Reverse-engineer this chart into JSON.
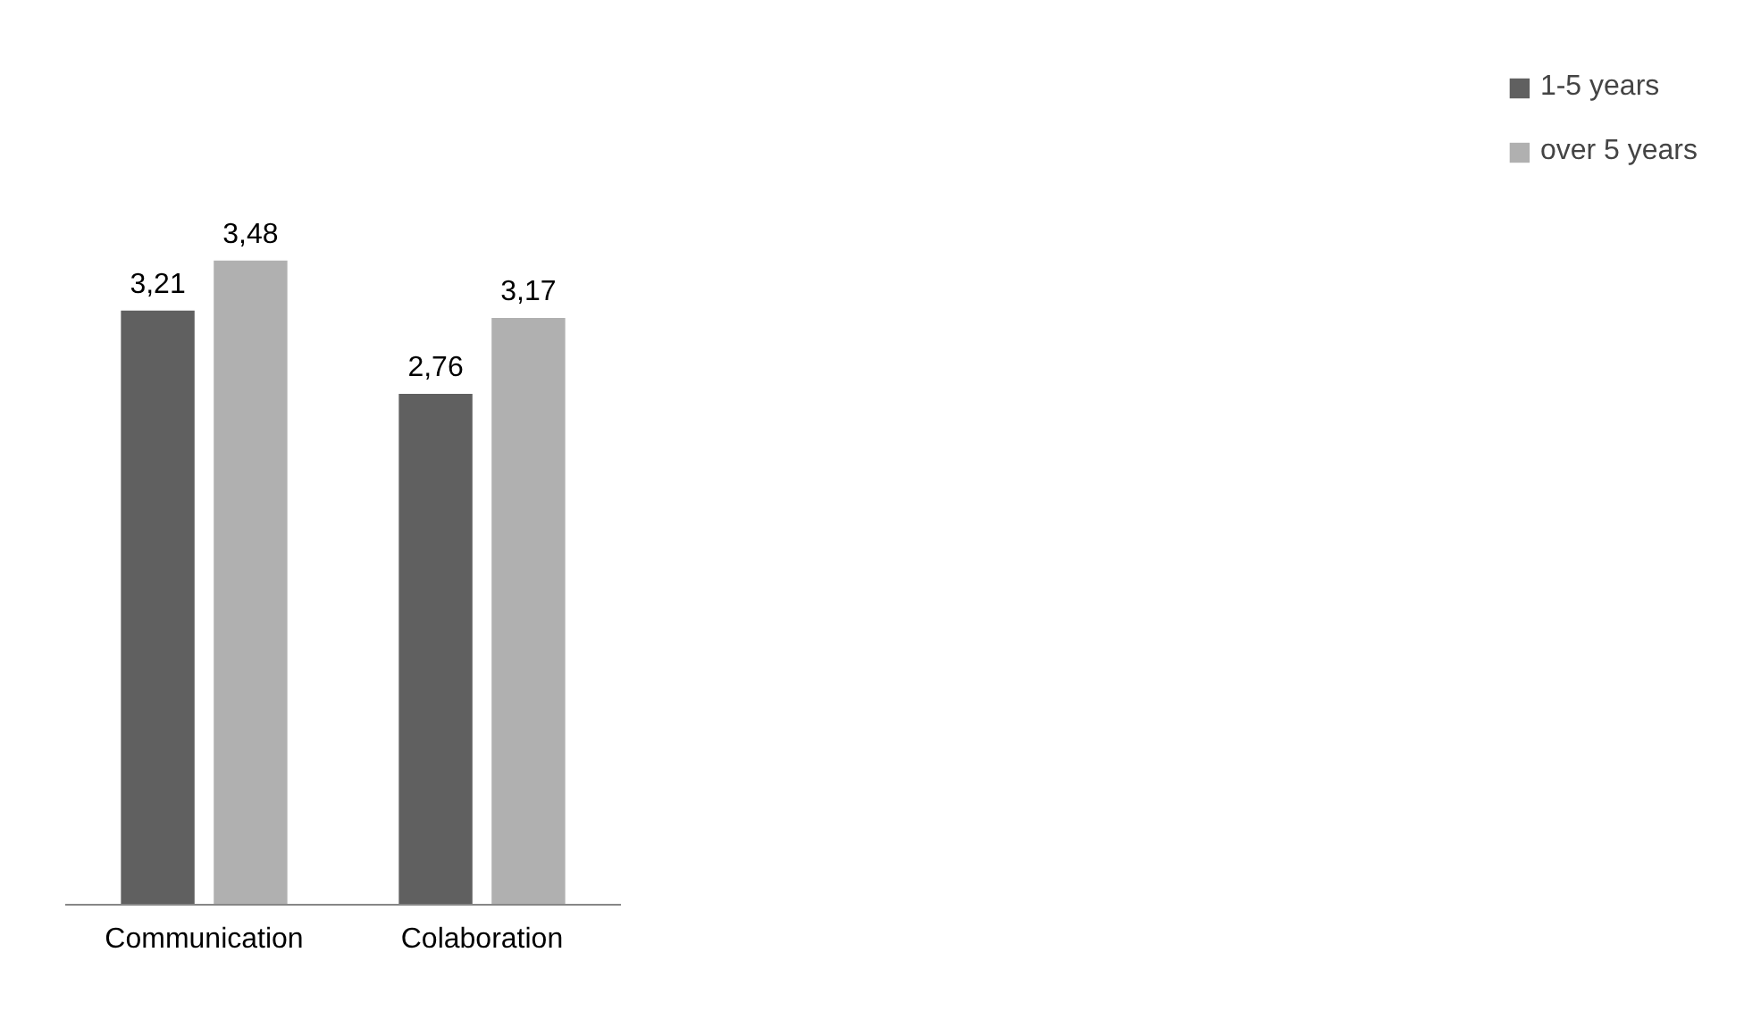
{
  "chart_data": {
    "type": "bar",
    "categories": [
      "Communication",
      "Colaboration"
    ],
    "series": [
      {
        "name": "1-5 years",
        "color": "#606060",
        "values": [
          3.21,
          2.76
        ],
        "value_labels": [
          "3,21",
          "2,76"
        ]
      },
      {
        "name": "over 5 years",
        "color": "#b0b0b0",
        "values": [
          3.48,
          3.17
        ],
        "value_labels": [
          "3,48",
          "3,17"
        ]
      }
    ],
    "legend": "right",
    "grid": false
  }
}
